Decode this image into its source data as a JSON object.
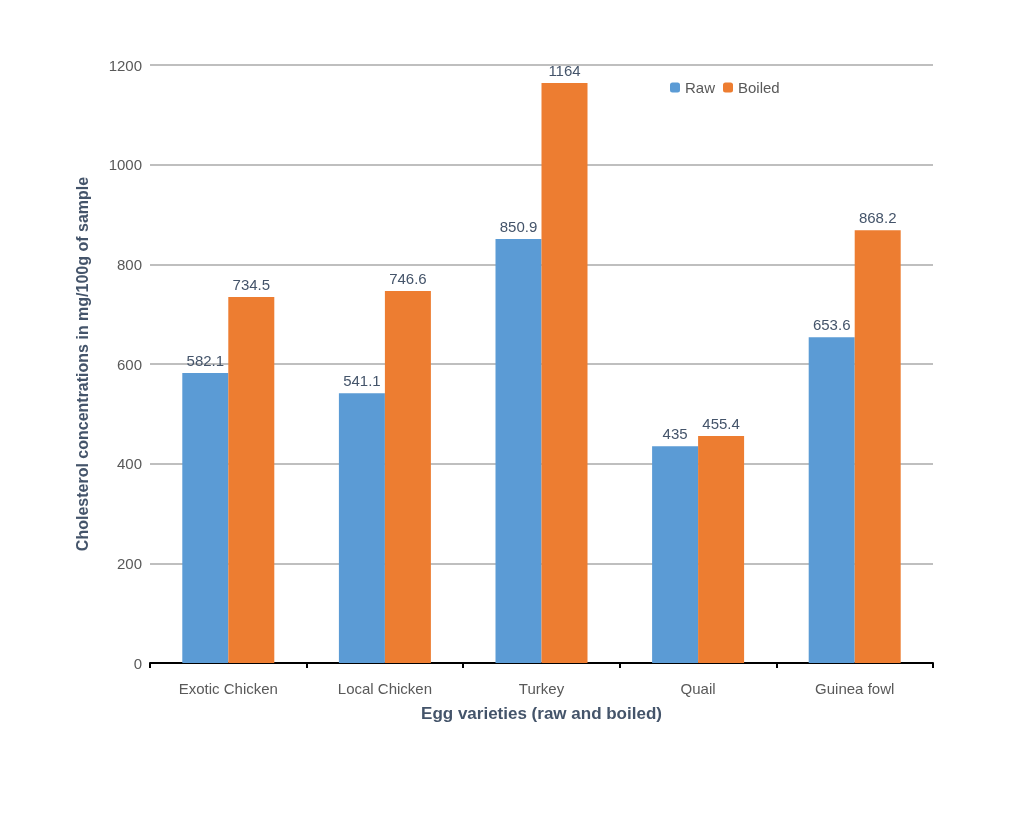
{
  "chart_data": {
    "type": "bar",
    "xlabel": "Egg varieties (raw and boiled)",
    "ylabel": "Cholesterol concentrations in mg/100g of sample",
    "categories": [
      "Exotic Chicken",
      "Local Chicken",
      "Turkey",
      "Quail",
      "Guinea fowl"
    ],
    "series": [
      {
        "name": "Raw",
        "color": "#5b9bd5",
        "values": [
          582.1,
          541.1,
          850.9,
          435,
          653.6
        ]
      },
      {
        "name": "Boiled",
        "color": "#ed7d31",
        "values": [
          734.5,
          746.6,
          1164,
          455.4,
          868.2
        ]
      }
    ],
    "ylim": [
      0,
      1200
    ],
    "yticks": [
      0,
      200,
      400,
      600,
      800,
      1000,
      1200
    ],
    "grid": "y",
    "legend": "top right",
    "data_labels": true
  }
}
